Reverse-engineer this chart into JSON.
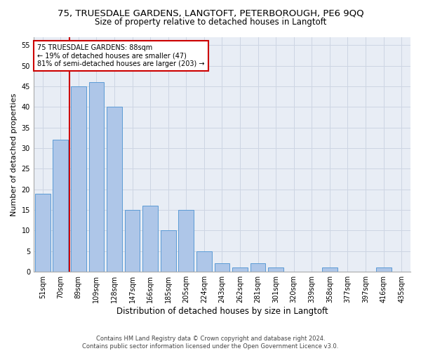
{
  "title": "75, TRUESDALE GARDENS, LANGTOFT, PETERBOROUGH, PE6 9QQ",
  "subtitle": "Size of property relative to detached houses in Langtoft",
  "xlabel": "Distribution of detached houses by size in Langtoft",
  "ylabel": "Number of detached properties",
  "categories": [
    "51sqm",
    "70sqm",
    "89sqm",
    "109sqm",
    "128sqm",
    "147sqm",
    "166sqm",
    "185sqm",
    "205sqm",
    "224sqm",
    "243sqm",
    "262sqm",
    "281sqm",
    "301sqm",
    "320sqm",
    "339sqm",
    "358sqm",
    "377sqm",
    "397sqm",
    "416sqm",
    "435sqm"
  ],
  "values": [
    19,
    32,
    45,
    46,
    40,
    15,
    16,
    10,
    15,
    5,
    2,
    1,
    2,
    1,
    0,
    0,
    1,
    0,
    0,
    1,
    0
  ],
  "bar_color": "#aec6e8",
  "bar_edge_color": "#5b9bd5",
  "highlight_bar_index": 2,
  "highlight_color": "#cc0000",
  "annotation_text": "75 TRUESDALE GARDENS: 88sqm\n← 19% of detached houses are smaller (47)\n81% of semi-detached houses are larger (203) →",
  "annotation_box_facecolor": "#ffffff",
  "annotation_box_edgecolor": "#cc0000",
  "ylim": [
    0,
    57
  ],
  "yticks": [
    0,
    5,
    10,
    15,
    20,
    25,
    30,
    35,
    40,
    45,
    50,
    55
  ],
  "grid_color": "#cdd5e3",
  "background_color": "#e8edf5",
  "footer_line1": "Contains HM Land Registry data © Crown copyright and database right 2024.",
  "footer_line2": "Contains public sector information licensed under the Open Government Licence v3.0.",
  "title_fontsize": 9.5,
  "subtitle_fontsize": 8.5,
  "ylabel_fontsize": 8,
  "xlabel_fontsize": 8.5,
  "tick_fontsize": 7,
  "annotation_fontsize": 7,
  "footer_fontsize": 6
}
